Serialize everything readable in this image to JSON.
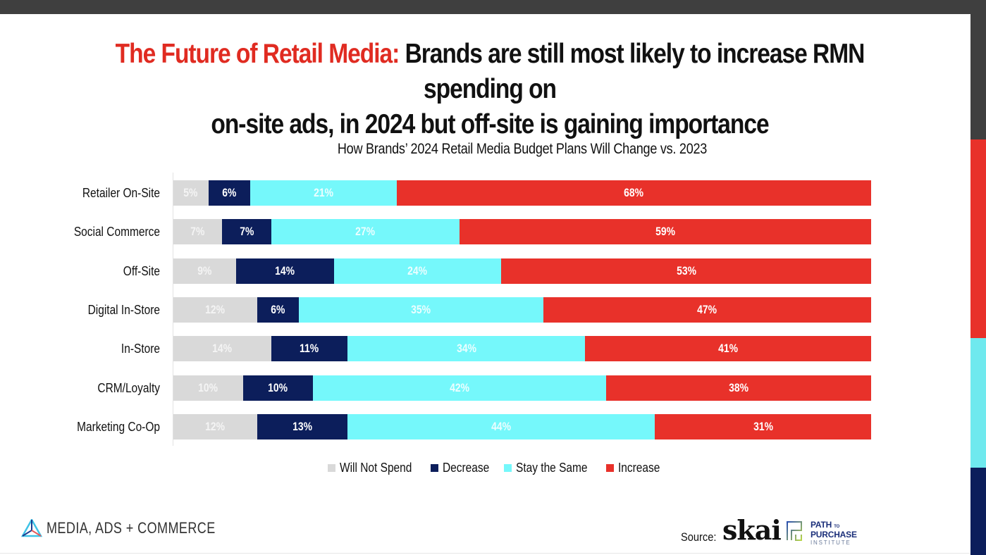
{
  "headline": {
    "accent": "The Future of Retail Media:",
    "line1_rest": " Brands are still most likely to increase RMN spending on",
    "line2": "on-site ads, in 2024 but off-site is gaining importance"
  },
  "colors": {
    "will_not_spend": "#d9d9d9",
    "decrease": "#0c1e5b",
    "stay_the_same": "#75f8fb",
    "increase": "#e8312a",
    "accent_red": "#e02b21"
  },
  "chart_data": {
    "type": "bar",
    "orientation": "horizontal",
    "stacked": true,
    "title": "How Brands’ 2024 Retail Media Budget Plans Will Change vs. 2023",
    "xlabel": "",
    "ylabel": "",
    "xlim": [
      0,
      100
    ],
    "grid": false,
    "legend_position": "bottom",
    "categories": [
      "Retailer On-Site",
      "Social Commerce",
      "Off-Site",
      "Digital In-Store",
      "In-Store",
      "CRM/Loyalty",
      "Marketing Co-Op"
    ],
    "series": [
      {
        "name": "Will Not Spend",
        "values": [
          5,
          7,
          9,
          12,
          14,
          10,
          12
        ]
      },
      {
        "name": "Decrease",
        "values": [
          6,
          7,
          14,
          6,
          11,
          10,
          13
        ]
      },
      {
        "name": "Stay the Same",
        "values": [
          21,
          27,
          24,
          35,
          34,
          42,
          44
        ]
      },
      {
        "name": "Increase",
        "values": [
          68,
          59,
          53,
          47,
          41,
          38,
          31
        ]
      }
    ],
    "value_label_suffix": "%"
  },
  "footer": {
    "brand": "MEDIA, ADS + COMMERCE",
    "source_label": "Source:",
    "source_logo_1": "skai",
    "source_logo_2_line1": "PATH",
    "source_logo_2_to": "TO",
    "source_logo_2_line2": "PURCHASE",
    "source_logo_2_line3": "INSTITUTE"
  }
}
